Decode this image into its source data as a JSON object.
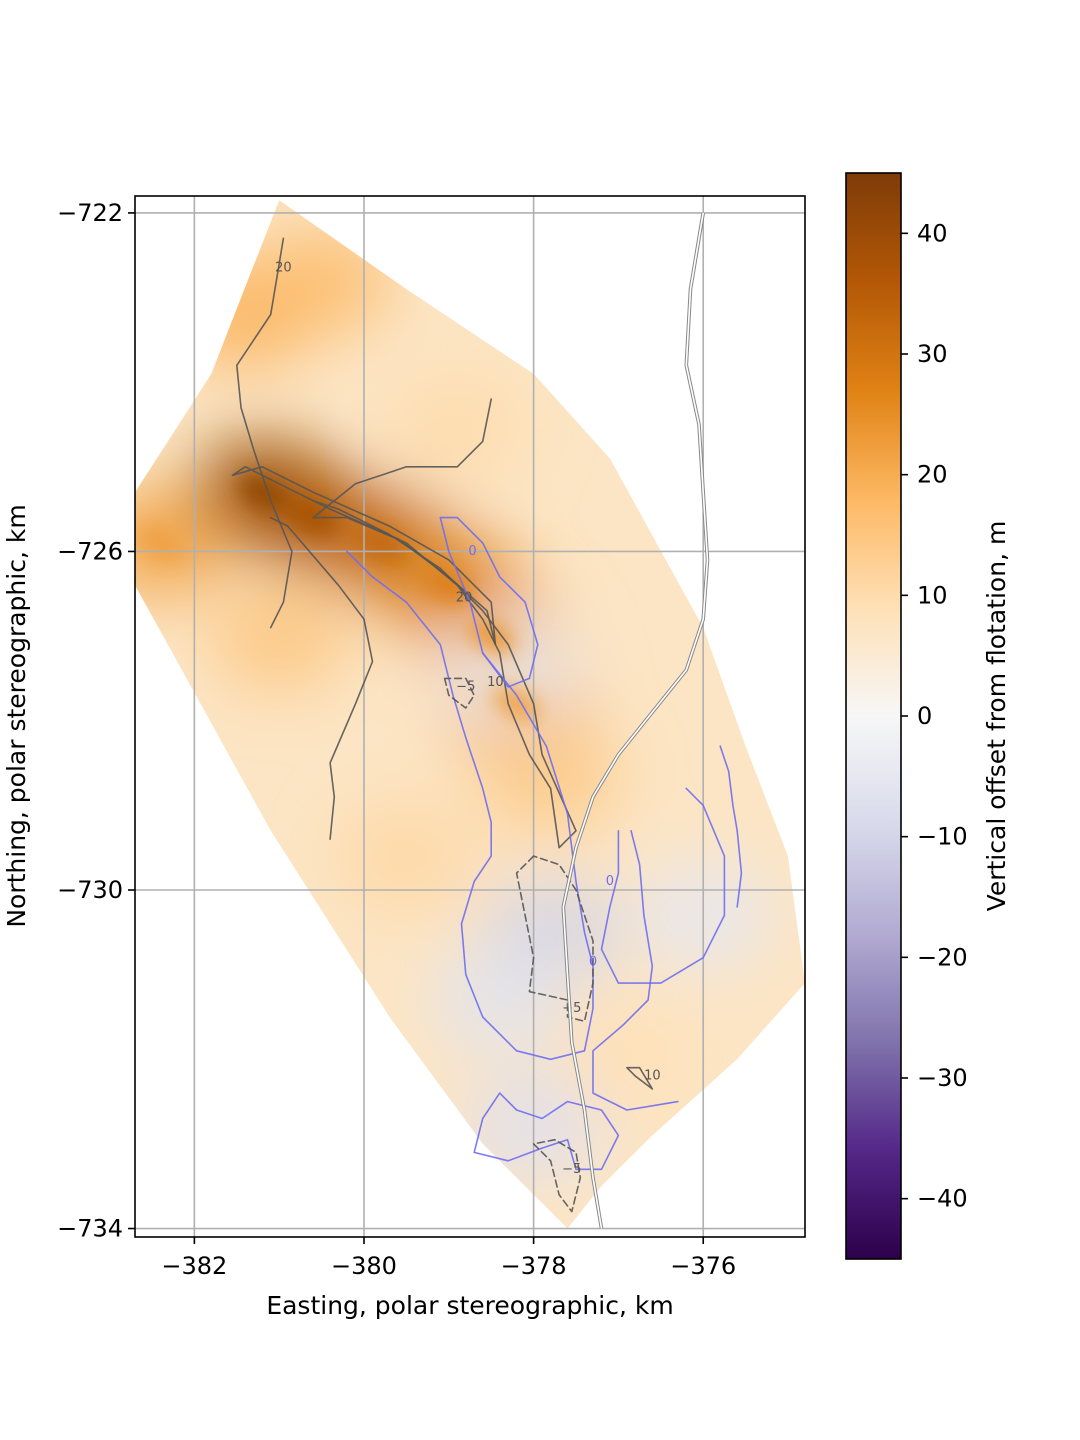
{
  "chart_data": {
    "type": "heatmap",
    "title": "",
    "xlabel": "Easting, polar stereographic, km",
    "ylabel": "Northing, polar stereographic, km",
    "xlim": [
      -382.7,
      -374.8
    ],
    "ylim": [
      -734.1,
      -721.8
    ],
    "x_ticks": [
      -382,
      -380,
      -378,
      -376
    ],
    "x_tick_labels": [
      "−382",
      "−380",
      "−378",
      "−376"
    ],
    "y_ticks": [
      -722,
      -726,
      -730,
      -734
    ],
    "y_tick_labels": [
      "−722",
      "−726",
      "−730",
      "−734"
    ],
    "grid": true,
    "colorbar": {
      "label": "Vertical offset from flotation, m",
      "range": [
        -45,
        45
      ],
      "ticks": [
        40,
        30,
        20,
        10,
        0,
        -10,
        -20,
        -30,
        -40
      ],
      "tick_labels": [
        "40",
        "30",
        "20",
        "10",
        "0",
        "−10",
        "−20",
        "−30",
        "−40"
      ],
      "colormap": "PuOr",
      "colors": [
        "#2d004b",
        "#542788",
        "#8073ac",
        "#b2abd2",
        "#d8daeb",
        "#f7f7f7",
        "#fee0b6",
        "#fdb863",
        "#e08214",
        "#b35806",
        "#7f3b08"
      ]
    },
    "domain_polygon": [
      [
        -381.0,
        -721.85
      ],
      [
        -379.5,
        -722.9
      ],
      [
        -378.0,
        -723.9
      ],
      [
        -377.1,
        -724.9
      ],
      [
        -376.0,
        -726.9
      ],
      [
        -375.5,
        -728.3
      ],
      [
        -375.0,
        -729.6
      ],
      [
        -374.8,
        -731.1
      ],
      [
        -375.6,
        -732.0
      ],
      [
        -376.6,
        -732.9
      ],
      [
        -377.2,
        -733.5
      ],
      [
        -377.6,
        -734.0
      ],
      [
        -378.6,
        -733.0
      ],
      [
        -379.7,
        -731.5
      ],
      [
        -381.1,
        -729.3
      ],
      [
        -382.7,
        -726.4
      ],
      [
        -382.7,
        -725.3
      ],
      [
        -381.8,
        -723.9
      ]
    ],
    "surface_highs": [
      {
        "x": -381.2,
        "y": -725.3,
        "value": 42
      },
      {
        "x": -380.6,
        "y": -725.6,
        "value": 38
      },
      {
        "x": -379.8,
        "y": -725.9,
        "value": 33
      },
      {
        "x": -379.0,
        "y": -726.4,
        "value": 28
      },
      {
        "x": -378.5,
        "y": -727.0,
        "value": 24
      },
      {
        "x": -378.2,
        "y": -727.8,
        "value": 22
      },
      {
        "x": -377.8,
        "y": -728.7,
        "value": 14
      },
      {
        "x": -382.4,
        "y": -725.9,
        "value": 22
      },
      {
        "x": -381.4,
        "y": -723.2,
        "value": 19
      },
      {
        "x": -380.5,
        "y": -722.8,
        "value": 17
      },
      {
        "x": -381.0,
        "y": -727.0,
        "value": 15
      },
      {
        "x": -379.5,
        "y": -729.6,
        "value": 11
      },
      {
        "x": -377.0,
        "y": -732.0,
        "value": 9
      },
      {
        "x": -378.9,
        "y": -724.5,
        "value": 10
      }
    ],
    "surface_lows": [
      {
        "x": -377.8,
        "y": -730.5,
        "value": -10
      },
      {
        "x": -378.0,
        "y": -732.8,
        "value": -7
      },
      {
        "x": -376.0,
        "y": -730.3,
        "value": -5
      },
      {
        "x": -378.3,
        "y": -727.4,
        "value": -4
      },
      {
        "x": -378.4,
        "y": -731.3,
        "value": -6
      }
    ],
    "contour_levels": [
      {
        "level": -5,
        "label": "−5",
        "style": "dashed",
        "color": "#555555"
      },
      {
        "level": 0,
        "label": "0",
        "style": "solid",
        "color": "#6e6ef0"
      },
      {
        "level": 10,
        "label": "10",
        "style": "solid",
        "color": "#555555"
      },
      {
        "level": 20,
        "label": "20",
        "style": "solid",
        "color": "#555555"
      }
    ],
    "contours": [
      {
        "level": 20,
        "points": [
          [
            -381.1,
            -726.9
          ],
          [
            -380.95,
            -726.6
          ],
          [
            -380.85,
            -726.0
          ],
          [
            -381.1,
            -725.4
          ],
          [
            -381.3,
            -724.8
          ],
          [
            -381.45,
            -724.3
          ],
          [
            -381.5,
            -723.8
          ],
          [
            -381.1,
            -723.2
          ],
          [
            -381.0,
            -722.6
          ],
          [
            -380.95,
            -722.3
          ]
        ]
      },
      {
        "level": 20,
        "points": [
          [
            -380.4,
            -729.4
          ],
          [
            -380.35,
            -728.9
          ],
          [
            -380.4,
            -728.5
          ],
          [
            -380.1,
            -727.8
          ],
          [
            -379.9,
            -727.3
          ],
          [
            -380.0,
            -726.8
          ],
          [
            -380.3,
            -726.4
          ],
          [
            -380.9,
            -725.7
          ],
          [
            -381.1,
            -725.6
          ]
        ]
      },
      {
        "level": 20,
        "points": [
          [
            -381.55,
            -725.1
          ],
          [
            -381.4,
            -725.0
          ],
          [
            -381.0,
            -725.2
          ],
          [
            -380.4,
            -725.5
          ],
          [
            -379.6,
            -725.85
          ],
          [
            -379.0,
            -726.3
          ],
          [
            -378.55,
            -726.7
          ],
          [
            -378.45,
            -727.1
          ],
          [
            -378.5,
            -726.6
          ],
          [
            -379.0,
            -726.1
          ],
          [
            -379.7,
            -725.7
          ],
          [
            -380.6,
            -725.3
          ],
          [
            -381.2,
            -725.0
          ],
          [
            -381.55,
            -725.1
          ]
        ]
      },
      {
        "level": 10,
        "points": [
          [
            -378.5,
            -724.2
          ],
          [
            -378.6,
            -724.7
          ],
          [
            -378.9,
            -725.0
          ],
          [
            -379.5,
            -725.0
          ],
          [
            -380.1,
            -725.2
          ],
          [
            -380.6,
            -725.6
          ],
          [
            -380.2,
            -725.6
          ],
          [
            -379.5,
            -725.9
          ],
          [
            -378.9,
            -726.4
          ],
          [
            -378.6,
            -726.8
          ],
          [
            -378.4,
            -727.2
          ],
          [
            -378.3,
            -727.8
          ],
          [
            -378.05,
            -728.4
          ],
          [
            -377.8,
            -728.8
          ],
          [
            -377.7,
            -729.5
          ],
          [
            -377.5,
            -729.3
          ],
          [
            -377.9,
            -728.4
          ],
          [
            -378.0,
            -727.8
          ],
          [
            -378.3,
            -727.1
          ],
          [
            -378.6,
            -726.7
          ],
          [
            -379.1,
            -726.2
          ],
          [
            -379.7,
            -725.8
          ],
          [
            -380.3,
            -725.5
          ],
          [
            -380.6,
            -725.4
          ]
        ]
      },
      {
        "level": 10,
        "points": [
          [
            -376.6,
            -732.35
          ],
          [
            -376.8,
            -732.2
          ],
          [
            -376.9,
            -732.1
          ],
          [
            -376.75,
            -732.1
          ],
          [
            -376.6,
            -732.35
          ]
        ]
      },
      {
        "level": 0,
        "points": [
          [
            -379.1,
            -725.6
          ],
          [
            -378.9,
            -725.6
          ],
          [
            -378.6,
            -725.9
          ],
          [
            -378.4,
            -726.3
          ],
          [
            -378.1,
            -726.6
          ],
          [
            -377.95,
            -727.1
          ],
          [
            -378.05,
            -727.5
          ],
          [
            -378.3,
            -727.6
          ],
          [
            -378.6,
            -727.2
          ],
          [
            -378.75,
            -726.6
          ],
          [
            -379.0,
            -726.0
          ],
          [
            -379.1,
            -725.6
          ]
        ]
      },
      {
        "level": 0,
        "points": [
          [
            -380.2,
            -726.0
          ],
          [
            -379.9,
            -726.3
          ],
          [
            -379.5,
            -726.6
          ],
          [
            -379.1,
            -727.1
          ],
          [
            -378.95,
            -727.7
          ],
          [
            -378.8,
            -728.2
          ],
          [
            -378.6,
            -728.8
          ],
          [
            -378.5,
            -729.2
          ],
          [
            -378.5,
            -729.6
          ],
          [
            -378.7,
            -729.9
          ],
          [
            -378.85,
            -730.4
          ],
          [
            -378.8,
            -731.0
          ],
          [
            -378.6,
            -731.5
          ],
          [
            -378.2,
            -731.9
          ],
          [
            -377.8,
            -732.0
          ],
          [
            -377.4,
            -731.9
          ],
          [
            -377.3,
            -731.4
          ],
          [
            -377.3,
            -730.9
          ],
          [
            -377.4,
            -730.5
          ],
          [
            -377.5,
            -729.9
          ],
          [
            -377.6,
            -729.1
          ],
          [
            -377.85,
            -728.3
          ],
          [
            -378.2,
            -727.7
          ],
          [
            -378.6,
            -727.2
          ]
        ]
      },
      {
        "level": 0,
        "points": [
          [
            -376.85,
            -729.3
          ],
          [
            -376.75,
            -729.7
          ],
          [
            -376.7,
            -730.3
          ],
          [
            -376.6,
            -730.9
          ],
          [
            -376.65,
            -731.3
          ],
          [
            -376.95,
            -731.6
          ],
          [
            -377.3,
            -731.9
          ],
          [
            -377.3,
            -732.4
          ],
          [
            -376.9,
            -732.6
          ],
          [
            -376.3,
            -732.5
          ]
        ]
      },
      {
        "level": 0,
        "points": [
          [
            -376.2,
            -728.8
          ],
          [
            -376.0,
            -729.0
          ],
          [
            -375.75,
            -729.6
          ],
          [
            -375.75,
            -730.3
          ],
          [
            -376.0,
            -730.8
          ],
          [
            -376.5,
            -731.1
          ],
          [
            -377.0,
            -731.1
          ],
          [
            -377.2,
            -730.7
          ],
          [
            -377.1,
            -730.2
          ],
          [
            -377.0,
            -729.8
          ],
          [
            -377.0,
            -729.3
          ]
        ]
      },
      {
        "level": 0,
        "points": [
          [
            -375.8,
            -728.3
          ],
          [
            -375.7,
            -728.6
          ],
          [
            -375.65,
            -729.0
          ],
          [
            -375.6,
            -729.3
          ],
          [
            -375.55,
            -729.8
          ],
          [
            -375.6,
            -730.2
          ]
        ]
      },
      {
        "level": 0,
        "points": [
          [
            -378.4,
            -732.4
          ],
          [
            -378.6,
            -732.7
          ],
          [
            -378.7,
            -733.1
          ],
          [
            -378.3,
            -733.2
          ],
          [
            -377.9,
            -733.05
          ],
          [
            -377.6,
            -732.95
          ],
          [
            -377.5,
            -733.3
          ],
          [
            -377.2,
            -733.3
          ],
          [
            -377.0,
            -732.9
          ],
          [
            -377.2,
            -732.6
          ],
          [
            -377.6,
            -732.5
          ],
          [
            -377.9,
            -732.7
          ],
          [
            -378.2,
            -732.6
          ],
          [
            -378.4,
            -732.4
          ]
        ]
      },
      {
        "level": -5,
        "points": [
          [
            -379.05,
            -727.5
          ],
          [
            -379.0,
            -727.7
          ],
          [
            -378.8,
            -727.85
          ],
          [
            -378.7,
            -727.7
          ],
          [
            -378.8,
            -727.5
          ],
          [
            -379.05,
            -727.5
          ]
        ]
      },
      {
        "level": -5,
        "points": [
          [
            -378.0,
            -729.6
          ],
          [
            -378.2,
            -729.8
          ],
          [
            -378.1,
            -730.3
          ],
          [
            -378.0,
            -730.8
          ],
          [
            -378.05,
            -731.2
          ],
          [
            -377.6,
            -731.3
          ],
          [
            -377.6,
            -731.5
          ],
          [
            -377.4,
            -731.55
          ],
          [
            -377.3,
            -731.1
          ],
          [
            -377.3,
            -730.6
          ],
          [
            -377.5,
            -730.0
          ],
          [
            -377.7,
            -729.7
          ],
          [
            -378.0,
            -729.6
          ]
        ]
      },
      {
        "level": -5,
        "points": [
          [
            -378.0,
            -733.0
          ],
          [
            -377.8,
            -733.2
          ],
          [
            -377.7,
            -733.6
          ],
          [
            -377.55,
            -733.8
          ],
          [
            -377.45,
            -733.4
          ],
          [
            -377.5,
            -733.1
          ],
          [
            -377.75,
            -732.95
          ],
          [
            -378.0,
            -733.0
          ]
        ]
      }
    ],
    "contour_label_positions": [
      {
        "level": 20,
        "label": "20",
        "x": -380.95,
        "y": -722.65
      },
      {
        "level": 20,
        "label": "20",
        "x": -378.82,
        "y": -726.55
      },
      {
        "level": 10,
        "label": "10",
        "x": -378.45,
        "y": -727.55
      },
      {
        "level": 0,
        "label": "0",
        "x": -378.72,
        "y": -726.0
      },
      {
        "level": -5,
        "label": "−5",
        "x": -378.8,
        "y": -727.6
      },
      {
        "level": 0,
        "label": "0",
        "x": -377.1,
        "y": -729.9
      },
      {
        "level": 0,
        "label": "0",
        "x": -377.3,
        "y": -730.85
      },
      {
        "level": -5,
        "label": "−5",
        "x": -377.55,
        "y": -731.4
      },
      {
        "level": 10,
        "label": "10",
        "x": -376.6,
        "y": -732.2
      },
      {
        "level": -5,
        "label": "−5",
        "x": -377.55,
        "y": -733.3
      }
    ],
    "double_line_path": [
      [
        -376.0,
        -722.0
      ],
      [
        -376.15,
        -722.9
      ],
      [
        -376.2,
        -723.8
      ],
      [
        -376.05,
        -724.5
      ],
      [
        -376.0,
        -725.3
      ],
      [
        -375.95,
        -726.1
      ],
      [
        -376.0,
        -726.8
      ],
      [
        -376.2,
        -727.4
      ],
      [
        -376.6,
        -727.9
      ],
      [
        -377.0,
        -728.4
      ],
      [
        -377.3,
        -728.9
      ],
      [
        -377.5,
        -729.5
      ],
      [
        -377.65,
        -730.2
      ],
      [
        -377.6,
        -731.0
      ],
      [
        -377.55,
        -731.8
      ],
      [
        -377.4,
        -732.6
      ],
      [
        -377.3,
        -733.4
      ],
      [
        -377.2,
        -734.0
      ]
    ]
  }
}
